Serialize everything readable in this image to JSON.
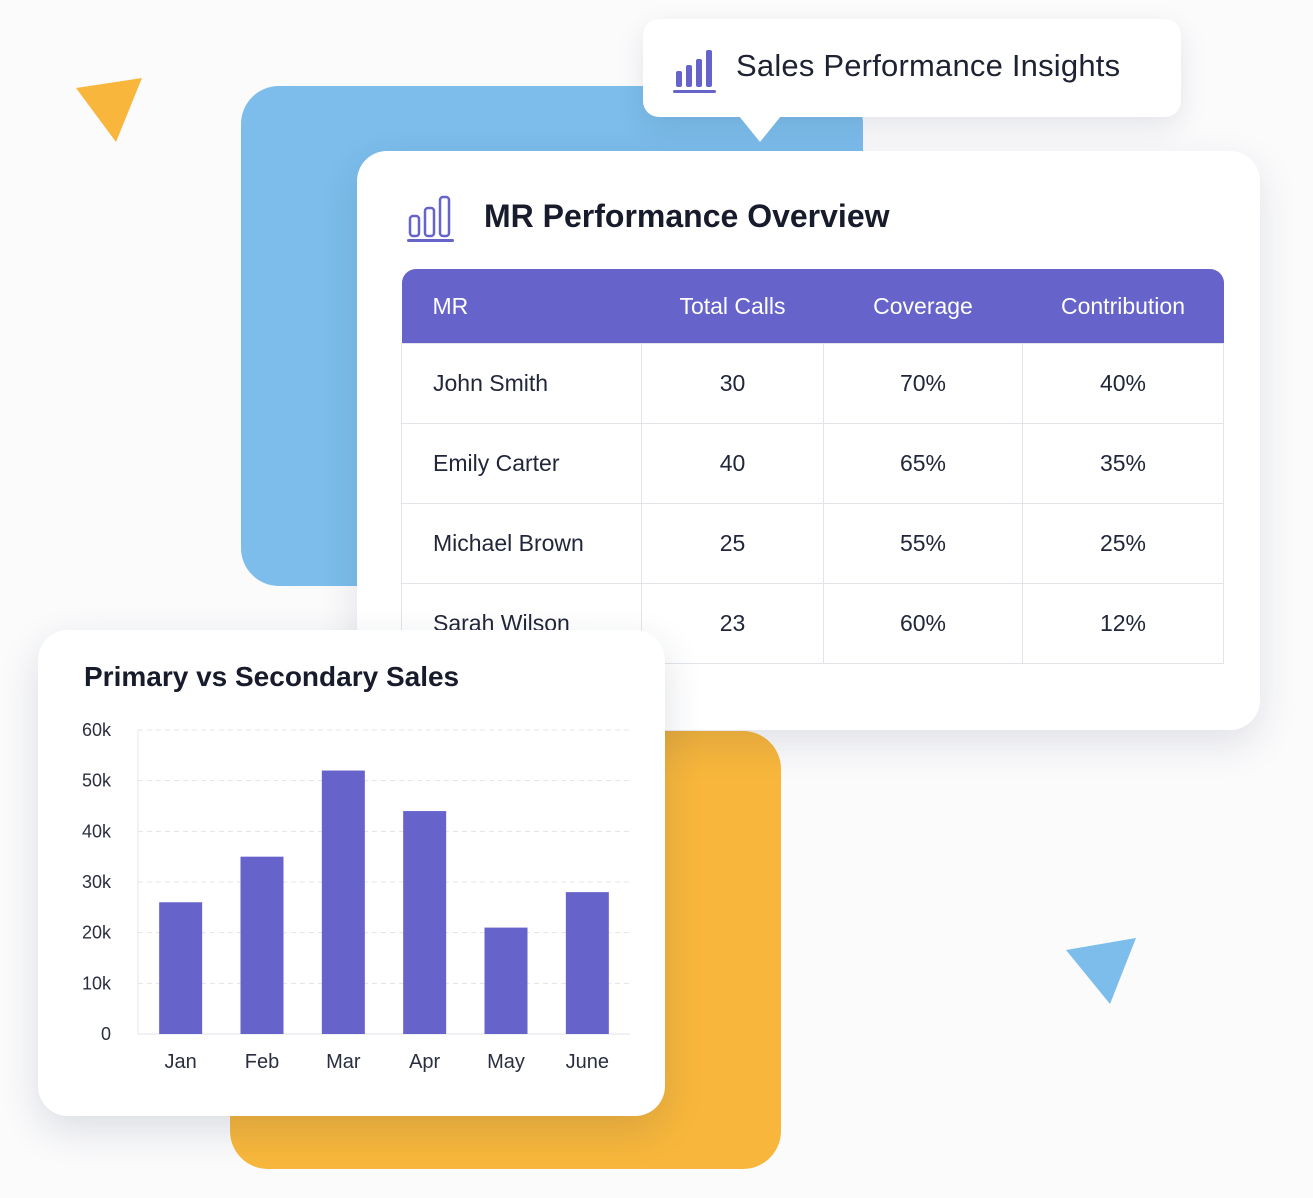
{
  "insights_badge": {
    "title": "Sales Performance Insights",
    "icon": "bar-chart-icon"
  },
  "table_card": {
    "title": "MR Performance Overview",
    "icon": "bar-chart-outline-icon",
    "columns": [
      "MR",
      "Total Calls",
      "Coverage",
      "Contribution"
    ],
    "rows": [
      [
        "John Smith",
        "30",
        "70%",
        "40%"
      ],
      [
        "Emily Carter",
        "40",
        "65%",
        "35%"
      ],
      [
        "Michael Brown",
        "25",
        "55%",
        "25%"
      ],
      [
        "Sarah Wilson",
        "23",
        "60%",
        "12%"
      ]
    ]
  },
  "chart_card": {
    "title": "Primary vs Secondary Sales"
  },
  "colors": {
    "accent": "#6663cb",
    "blue": "#7cbdeb",
    "yellow": "#f8b73c"
  },
  "chart_data": {
    "type": "bar",
    "title": "Primary vs Secondary Sales",
    "categories": [
      "Jan",
      "Feb",
      "Mar",
      "Apr",
      "May",
      "June"
    ],
    "values": [
      26000,
      35000,
      52000,
      44000,
      21000,
      28000
    ],
    "yticks": [
      "0",
      "10k",
      "20k",
      "30k",
      "40k",
      "50k",
      "60k"
    ],
    "ylim": [
      0,
      60000
    ],
    "xlabel": "",
    "ylabel": "",
    "grid": true,
    "color": "#6663cb"
  }
}
